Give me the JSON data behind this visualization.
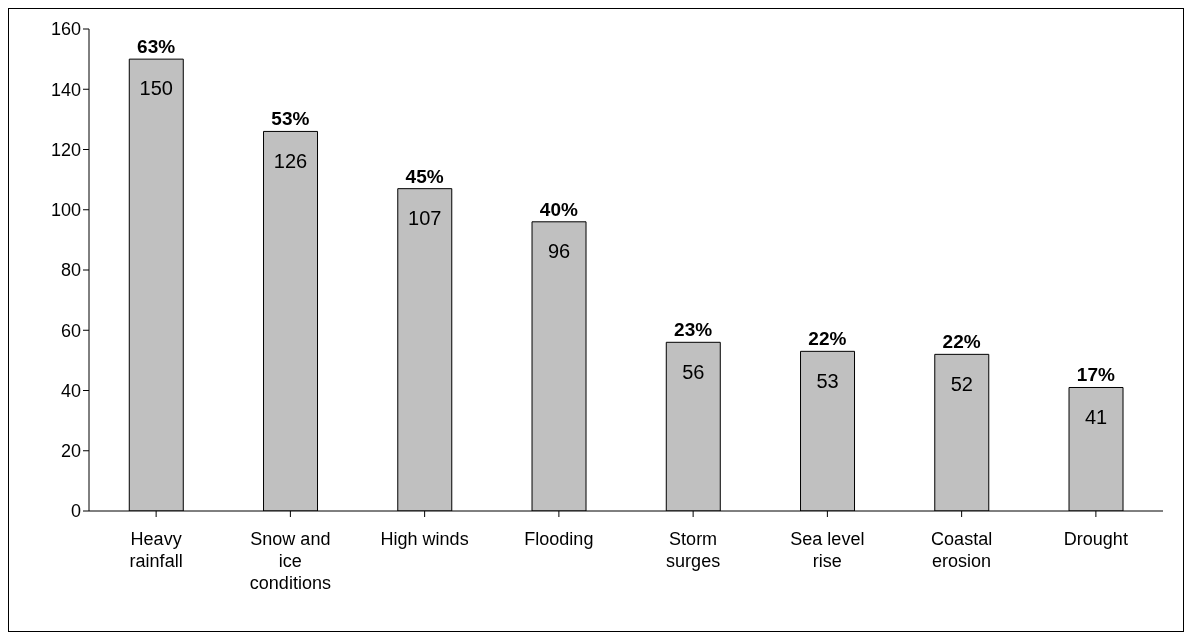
{
  "chart_data": {
    "type": "bar",
    "categories": [
      "Heavy rainfall",
      "Snow and ice conditions",
      "High winds",
      "Flooding",
      "Storm surges",
      "Sea level rise",
      "Coastal erosion",
      "Drought"
    ],
    "values": [
      150,
      126,
      107,
      96,
      56,
      53,
      52,
      41
    ],
    "color": "#c0c0c0",
    "ylim": [
      0,
      160
    ],
    "yticks": [
      0,
      20,
      40,
      60,
      80,
      100,
      120,
      140,
      160
    ],
    "grid": false,
    "legend": false,
    "data_labels": true,
    "annotations": [
      {
        "text": "63%",
        "x": "Heavy rainfall",
        "y": 150
      },
      {
        "text": "53%",
        "x": "Snow and ice conditions",
        "y": 126
      },
      {
        "text": "45%",
        "x": "High winds",
        "y": 107
      },
      {
        "text": "40%",
        "x": "Flooding",
        "y": 96
      },
      {
        "text": "23%",
        "x": "Storm surges",
        "y": 56
      },
      {
        "text": "22%",
        "x": "Sea level rise",
        "y": 53
      },
      {
        "text": "22%",
        "x": "Coastal erosion",
        "y": 52
      },
      {
        "text": "17%",
        "x": "Drought",
        "y": 41
      }
    ]
  }
}
